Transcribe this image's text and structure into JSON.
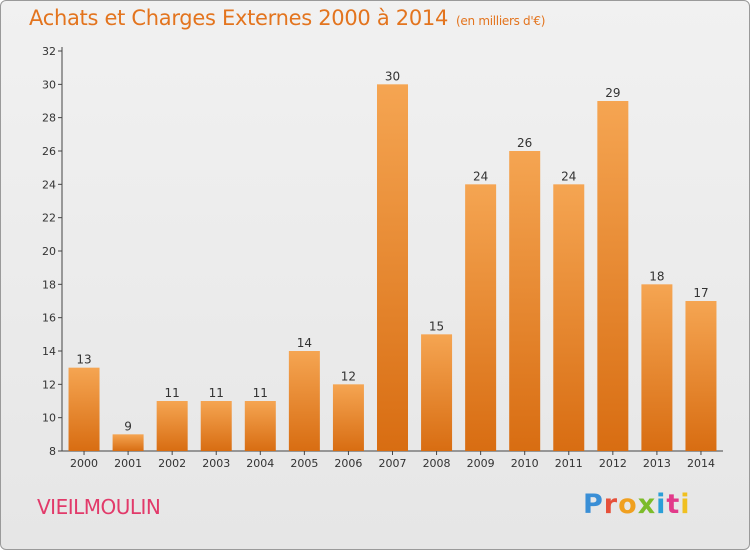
{
  "header": {
    "title": "Achats et Charges Externes 2000 à 2014",
    "unit": "(en milliers d'€)"
  },
  "footer": {
    "commune": "VIEILMOULIN",
    "logo": [
      "P",
      "r",
      "o",
      "x",
      "i",
      "t",
      "i"
    ]
  },
  "colors": {
    "bar_top": "#f5a552",
    "bar_bottom": "#d86d12",
    "title": "#e3741e",
    "commune": "#e23a6a"
  },
  "chart_data": {
    "type": "bar",
    "title": "Achats et Charges Externes 2000 à 2014",
    "xlabel": "",
    "ylabel": "",
    "categories": [
      "2000",
      "2001",
      "2002",
      "2003",
      "2004",
      "2005",
      "2006",
      "2007",
      "2008",
      "2009",
      "2010",
      "2011",
      "2012",
      "2013",
      "2014"
    ],
    "values": [
      13,
      9,
      11,
      11,
      11,
      14,
      12,
      30,
      15,
      24,
      26,
      24,
      29,
      18,
      17
    ],
    "ylim": [
      8,
      32
    ],
    "yticks": [
      8,
      10,
      12,
      14,
      16,
      18,
      20,
      22,
      24,
      26,
      28,
      30,
      32
    ],
    "grid": false
  }
}
